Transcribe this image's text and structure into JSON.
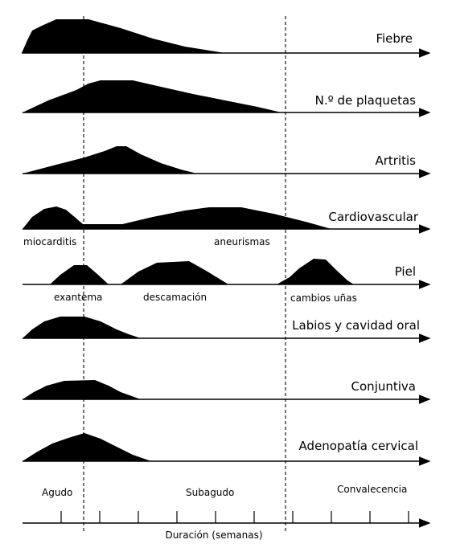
{
  "rows": [
    {
      "id": "fiebre",
      "label": "Fiebre"
    },
    {
      "id": "plaquetas",
      "label": "N.º de plaquetas"
    },
    {
      "id": "artritis",
      "label": "Artritis"
    },
    {
      "id": "cardiovascular",
      "label": "Cardiovascular"
    },
    {
      "id": "piel",
      "label": "Piel"
    },
    {
      "id": "labios",
      "label": "Labios y cavidad oral"
    },
    {
      "id": "conjuntiva",
      "label": "Conjuntiva"
    },
    {
      "id": "adenopatia",
      "label": "Adenopatía cervical"
    }
  ],
  "annotations": {
    "miocarditis": "miocarditis",
    "aneurismas": "aneurismas",
    "exantema": "exantema",
    "descamacion": "descamación",
    "cambios_unas": "cambios uñas"
  },
  "phases": {
    "agudo": "Agudo",
    "subagudo": "Subagudo",
    "convalecencia": "Convalecencia"
  },
  "axis": {
    "title": "Duración (semanas)"
  },
  "colors": {
    "fill": "#000000",
    "line": "#000000",
    "background": "#ffffff"
  }
}
